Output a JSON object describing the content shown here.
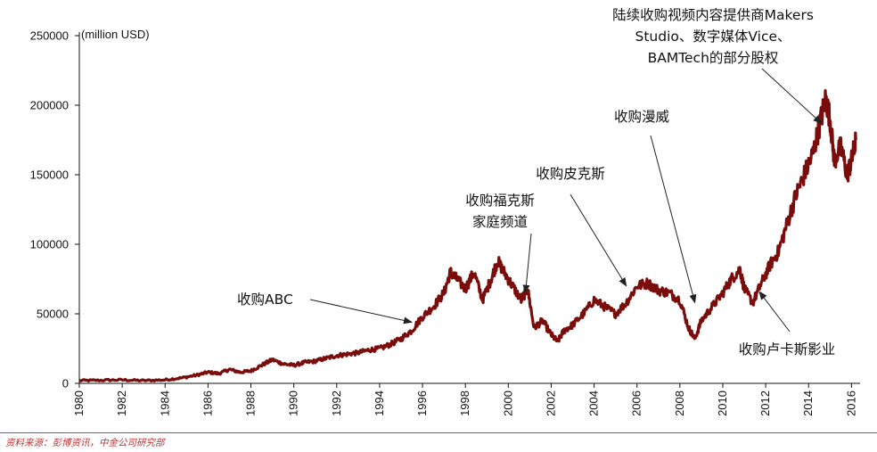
{
  "chart_data": {
    "type": "line",
    "title": "",
    "xlabel": "",
    "ylabel": "(million USD)",
    "xlim": [
      1980,
      2016.4
    ],
    "ylim": [
      0,
      250000
    ],
    "y_ticks": [
      0,
      50000,
      100000,
      150000,
      200000,
      250000
    ],
    "y_tick_labels": [
      "0",
      "50000",
      "100000",
      "150000",
      "200000",
      "250000"
    ],
    "x_ticks": [
      1980,
      1982,
      1984,
      1986,
      1988,
      1990,
      1992,
      1994,
      1996,
      1998,
      2000,
      2002,
      2004,
      2006,
      2008,
      2010,
      2012,
      2014,
      2016
    ],
    "x_tick_labels": [
      "1980",
      "1982",
      "1984",
      "1986",
      "1988",
      "1990",
      "1992",
      "1994",
      "1996",
      "1998",
      "2000",
      "2002",
      "2004",
      "2006",
      "2008",
      "2010",
      "2012",
      "2014",
      "2016"
    ],
    "grid": false,
    "line_color": "#7a0c0c",
    "series": [
      {
        "name": "",
        "x": [
          1980,
          1981,
          1982,
          1983,
          1984,
          1984.8,
          1985.5,
          1986,
          1986.5,
          1987,
          1987.5,
          1988,
          1988.5,
          1989,
          1989.5,
          1990,
          1990.5,
          1991,
          1991.5,
          1992,
          1992.5,
          1993,
          1993.5,
          1994,
          1994.5,
          1995,
          1995.5,
          1996,
          1996.5,
          1997,
          1997.3,
          1997.6,
          1998,
          1998.4,
          1998.8,
          1999.2,
          1999.5,
          1999.8,
          2000.2,
          2000.6,
          2000.9,
          2001.2,
          2001.6,
          2002,
          2002.3,
          2002.6,
          2003,
          2003.5,
          2004,
          2004.5,
          2005,
          2005.5,
          2006,
          2006.5,
          2007,
          2007.5,
          2008,
          2008.4,
          2008.7,
          2009,
          2009.5,
          2010,
          2010.4,
          2010.8,
          2011,
          2011.4,
          2011.8,
          2012.2,
          2012.6,
          2013,
          2013.4,
          2013.8,
          2014.2,
          2014.5,
          2014.8,
          2015,
          2015.2,
          2015.5,
          2015.8,
          2016,
          2016.2
        ],
        "values": [
          2000,
          2200,
          2500,
          2000,
          2500,
          4000,
          6000,
          8000,
          7000,
          10000,
          8000,
          9000,
          13000,
          17000,
          14000,
          13000,
          15000,
          16000,
          18000,
          20000,
          21000,
          22000,
          24000,
          25000,
          28000,
          32000,
          38000,
          48000,
          55000,
          65000,
          80000,
          75000,
          68000,
          80000,
          60000,
          75000,
          88000,
          80000,
          70000,
          60000,
          68000,
          40000,
          45000,
          35000,
          30000,
          38000,
          42000,
          50000,
          60000,
          55000,
          50000,
          58000,
          70000,
          72000,
          67000,
          65000,
          60000,
          40000,
          32000,
          45000,
          55000,
          65000,
          75000,
          82000,
          68000,
          58000,
          72000,
          85000,
          95000,
          115000,
          135000,
          150000,
          165000,
          185000,
          205000,
          190000,
          160000,
          170000,
          150000,
          160000,
          175000
        ]
      }
    ],
    "annotations": [
      {
        "id": "abc",
        "lines": [
          "收购ABC"
        ],
        "year": 1995.5,
        "value": 44000
      },
      {
        "id": "fox",
        "lines": [
          "收购福克斯",
          "家庭频道"
        ],
        "year": 2000.8,
        "value": 65000
      },
      {
        "id": "pixar",
        "lines": [
          "收购皮克斯"
        ],
        "year": 2005.5,
        "value": 70000
      },
      {
        "id": "marvel",
        "lines": [
          "收购漫威"
        ],
        "year": 2008.7,
        "value": 58000
      },
      {
        "id": "lucasfilm",
        "lines": [
          "收购卢卡斯影业"
        ],
        "year": 2011.7,
        "value": 66000
      },
      {
        "id": "makers",
        "lines": [
          "陆续收购视频内容提供商Makers",
          "Studio、数字媒体Vice、",
          "BAMTech的部分股权"
        ],
        "year": 2014.6,
        "value": 187000
      }
    ]
  },
  "source": "资料来源：彭博资讯，中金公司研究部"
}
